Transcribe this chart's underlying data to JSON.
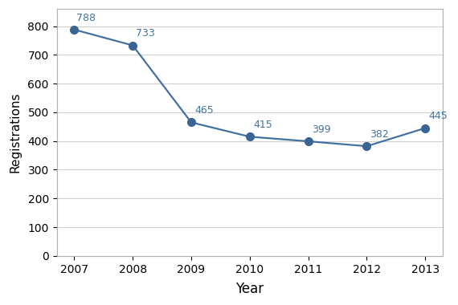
{
  "years": [
    2007,
    2008,
    2009,
    2010,
    2011,
    2012,
    2013
  ],
  "values": [
    788,
    733,
    465,
    415,
    399,
    382,
    445
  ],
  "line_color": "#4472a0",
  "marker_color": "#3a6494",
  "xlabel": "Year",
  "ylabel": "Registrations",
  "ylim": [
    0,
    860
  ],
  "yticks": [
    0,
    100,
    200,
    300,
    400,
    500,
    600,
    700,
    800
  ],
  "background_color": "#ffffff",
  "plot_bg_color": "#ffffff",
  "grid_color": "#d0d0d0",
  "border_color": "#b0b0b0",
  "marker_size": 7,
  "line_width": 1.6,
  "xlabel_fontsize": 12,
  "ylabel_fontsize": 11,
  "tick_fontsize": 10,
  "annotation_fontsize": 9,
  "annotation_color": "#4472a0"
}
